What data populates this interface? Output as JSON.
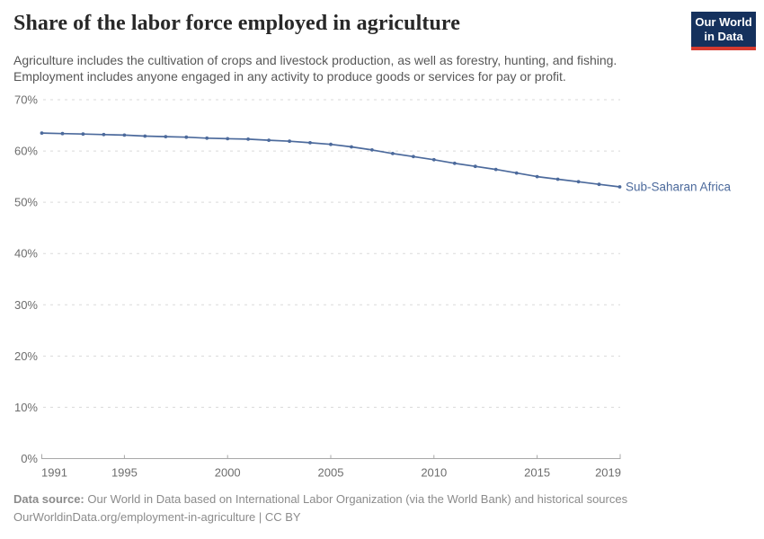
{
  "chart_data": {
    "type": "line",
    "title": "Share of the labor force employed in agriculture",
    "subtitle_lines": [
      "Agriculture includes the cultivation of crops and livestock production, as well as forestry, hunting, and fishing.",
      "Employment includes anyone engaged in any activity to produce goods or services for pay or profit."
    ],
    "x": [
      1991,
      1992,
      1993,
      1994,
      1995,
      1996,
      1997,
      1998,
      1999,
      2000,
      2001,
      2002,
      2003,
      2004,
      2005,
      2006,
      2007,
      2008,
      2009,
      2010,
      2011,
      2012,
      2013,
      2014,
      2015,
      2016,
      2017,
      2018,
      2019
    ],
    "series": [
      {
        "name": "Sub-Saharan Africa",
        "color": "#4c6a9c",
        "values": [
          63.5,
          63.4,
          63.3,
          63.2,
          63.1,
          62.9,
          62.8,
          62.7,
          62.5,
          62.4,
          62.3,
          62.1,
          61.9,
          61.6,
          61.3,
          60.8,
          60.2,
          59.5,
          58.9,
          58.3,
          57.6,
          57.0,
          56.4,
          55.7,
          55.0,
          54.5,
          54.0,
          53.5,
          53.0
        ]
      }
    ],
    "ylim": [
      0,
      70
    ],
    "yticks": [
      0,
      10,
      20,
      30,
      40,
      50,
      60,
      70
    ],
    "ytick_labels": [
      "0%",
      "10%",
      "20%",
      "30%",
      "40%",
      "50%",
      "60%",
      "70%"
    ],
    "xticks": [
      1991,
      1995,
      2000,
      2005,
      2010,
      2015,
      2019
    ],
    "xtick_labels": [
      "1991",
      "1995",
      "2000",
      "2005",
      "2010",
      "2015",
      "2019"
    ],
    "grid": "horizontal-dashed",
    "legend_position": "end-of-line",
    "xlabel": "",
    "ylabel": ""
  },
  "logo": {
    "line1": "Our World",
    "line2": "in Data",
    "bg_color": "#15315d",
    "accent_color": "#d63a2f"
  },
  "footer": {
    "source_label": "Data source:",
    "source_text": "Our World in Data based on International Labor Organization (via the World Bank) and historical sources",
    "link_line": "OurWorldinData.org/employment-in-agriculture | CC BY"
  }
}
